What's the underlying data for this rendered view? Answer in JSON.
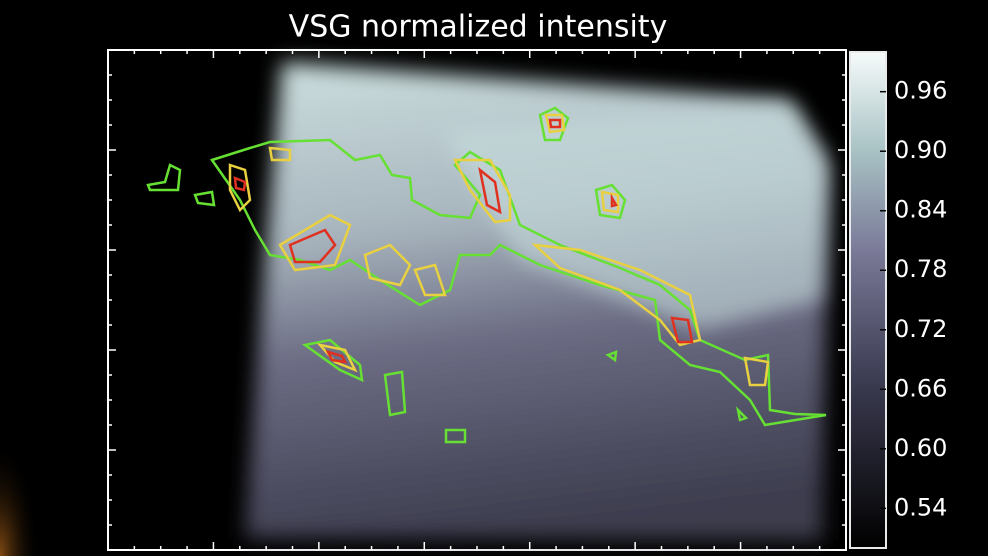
{
  "chart_data": {
    "type": "heatmap",
    "title": "VSG normalized intensity",
    "colorbar": {
      "lim": [
        0.5,
        1.0
      ],
      "ticks": [
        0.54,
        {
          "value": 0.6,
          "label": "0.60"
        },
        0.66,
        0.72,
        0.78,
        0.84,
        {
          "value": 0.9,
          "label": "0.90"
        },
        0.96
      ]
    }
  }
}
